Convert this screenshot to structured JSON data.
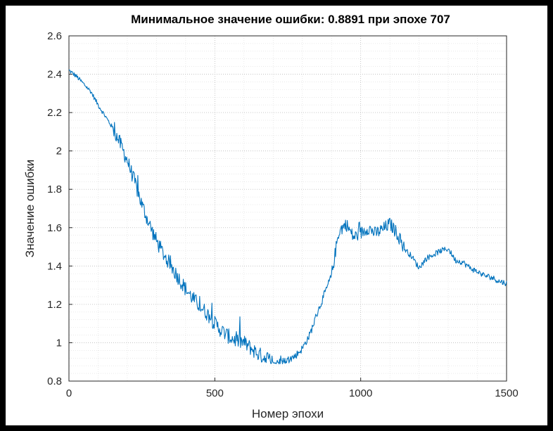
{
  "chart_data": {
    "type": "line",
    "title": "Минимальное значение ошибки: 0.8891 при эпохе 707",
    "xlabel": "Номер эпохи",
    "ylabel": "Значение ошибки",
    "xlim": [
      0,
      1500
    ],
    "ylim": [
      0.8,
      2.6
    ],
    "xticks": [
      0,
      500,
      1000,
      1500
    ],
    "yticks": [
      0.8,
      1,
      1.2,
      1.4,
      1.6,
      1.8,
      2,
      2.2,
      2.4,
      2.6
    ],
    "xtick_labels": [
      "0",
      "500",
      "1000",
      "1500"
    ],
    "ytick_labels": [
      "0.8",
      "1",
      "1.2",
      "1.4",
      "1.6",
      "1.8",
      "2",
      "2.2",
      "2.4",
      "2.6"
    ],
    "grid": "major and minor, dotted",
    "series_color": "#0072bd",
    "series": [
      {
        "x": [
          0,
          25,
          50,
          75,
          100,
          125,
          150,
          175,
          200,
          225,
          250,
          275,
          300,
          325,
          350,
          375,
          400,
          425,
          450,
          475,
          500,
          525,
          550,
          575,
          600,
          625,
          650,
          675,
          700,
          707,
          725,
          750,
          775,
          800,
          825,
          850,
          875,
          900,
          925,
          950,
          975,
          1000,
          1025,
          1050,
          1075,
          1100,
          1125,
          1150,
          1175,
          1200,
          1225,
          1250,
          1275,
          1300,
          1325,
          1350,
          1375,
          1400,
          1425,
          1450,
          1475,
          1500
        ],
        "y": [
          2.42,
          2.39,
          2.35,
          2.31,
          2.24,
          2.18,
          2.12,
          2.04,
          1.95,
          1.84,
          1.72,
          1.62,
          1.53,
          1.46,
          1.4,
          1.34,
          1.28,
          1.23,
          1.19,
          1.15,
          1.1,
          1.06,
          1.03,
          1.01,
          1.0,
          0.97,
          0.94,
          0.92,
          0.9,
          0.8891,
          0.9,
          0.91,
          0.93,
          0.97,
          1.04,
          1.15,
          1.25,
          1.35,
          1.58,
          1.62,
          1.55,
          1.57,
          1.6,
          1.57,
          1.59,
          1.62,
          1.57,
          1.49,
          1.45,
          1.39,
          1.44,
          1.46,
          1.48,
          1.49,
          1.43,
          1.42,
          1.39,
          1.37,
          1.35,
          1.34,
          1.32,
          1.31
        ]
      }
    ]
  }
}
